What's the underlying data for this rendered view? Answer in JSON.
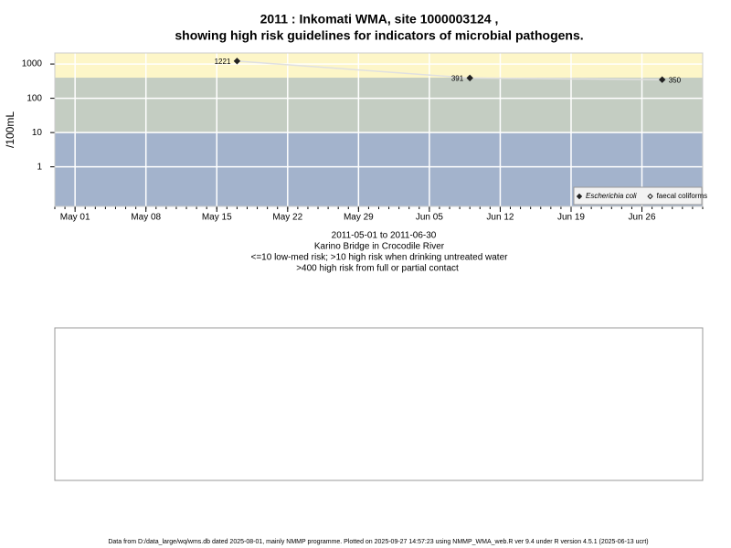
{
  "chart_data": {
    "type": "line",
    "title": "2011 : Inkomati WMA, site 1000003124 ,",
    "subtitle": "showing high risk guidelines for indicators of microbial pathogens.",
    "ylabel": "/100mL",
    "notes": [
      "2011-05-01 to 2011-06-30",
      "Karino Bridge in Crocodile River",
      "<=10 low-med risk; >10 high risk when drinking untreated water",
      ">400 high risk from full or partial contact"
    ],
    "footer": "Data from D:/data_large/wq/wms.db dated 2025-08-01, mainly NMMP programme. Plotted on 2025-09-27 14:57:23 using NMMP_WMA_web.R ver 9.4 under R version 4.5.1 (2025-06-13 ucrt)",
    "log_y": true,
    "grid": true,
    "ylim": [
      0.07,
      2100
    ],
    "yticks": [
      1,
      10,
      100,
      1000
    ],
    "xlim": [
      "2011-04-29",
      "2011-07-02"
    ],
    "xticks": [
      {
        "value": "2011-05-01",
        "label": "May 01"
      },
      {
        "value": "2011-05-08",
        "label": "May 08"
      },
      {
        "value": "2011-05-15",
        "label": "May 15"
      },
      {
        "value": "2011-05-22",
        "label": "May 22"
      },
      {
        "value": "2011-05-29",
        "label": "May 29"
      },
      {
        "value": "2011-06-05",
        "label": "Jun 05"
      },
      {
        "value": "2011-06-12",
        "label": "Jun 12"
      },
      {
        "value": "2011-06-19",
        "label": "Jun 19"
      },
      {
        "value": "2011-06-26",
        "label": "Jun 26"
      }
    ],
    "thresholds": [
      10,
      400
    ],
    "band_colors": [
      "#a3b3cc",
      "#c4cdc2",
      "#fdf6c8"
    ],
    "legend": "bottom-right",
    "series": [
      {
        "name": "Escherichia coli",
        "color": "#222222",
        "marker": "filled",
        "x": [
          "2011-05-17",
          "2011-06-09",
          "2011-06-28"
        ],
        "values": [
          1221,
          391,
          350
        ]
      },
      {
        "name": "faecal coliforms",
        "color": "#222222",
        "marker": "open",
        "x": [],
        "values": []
      }
    ]
  }
}
